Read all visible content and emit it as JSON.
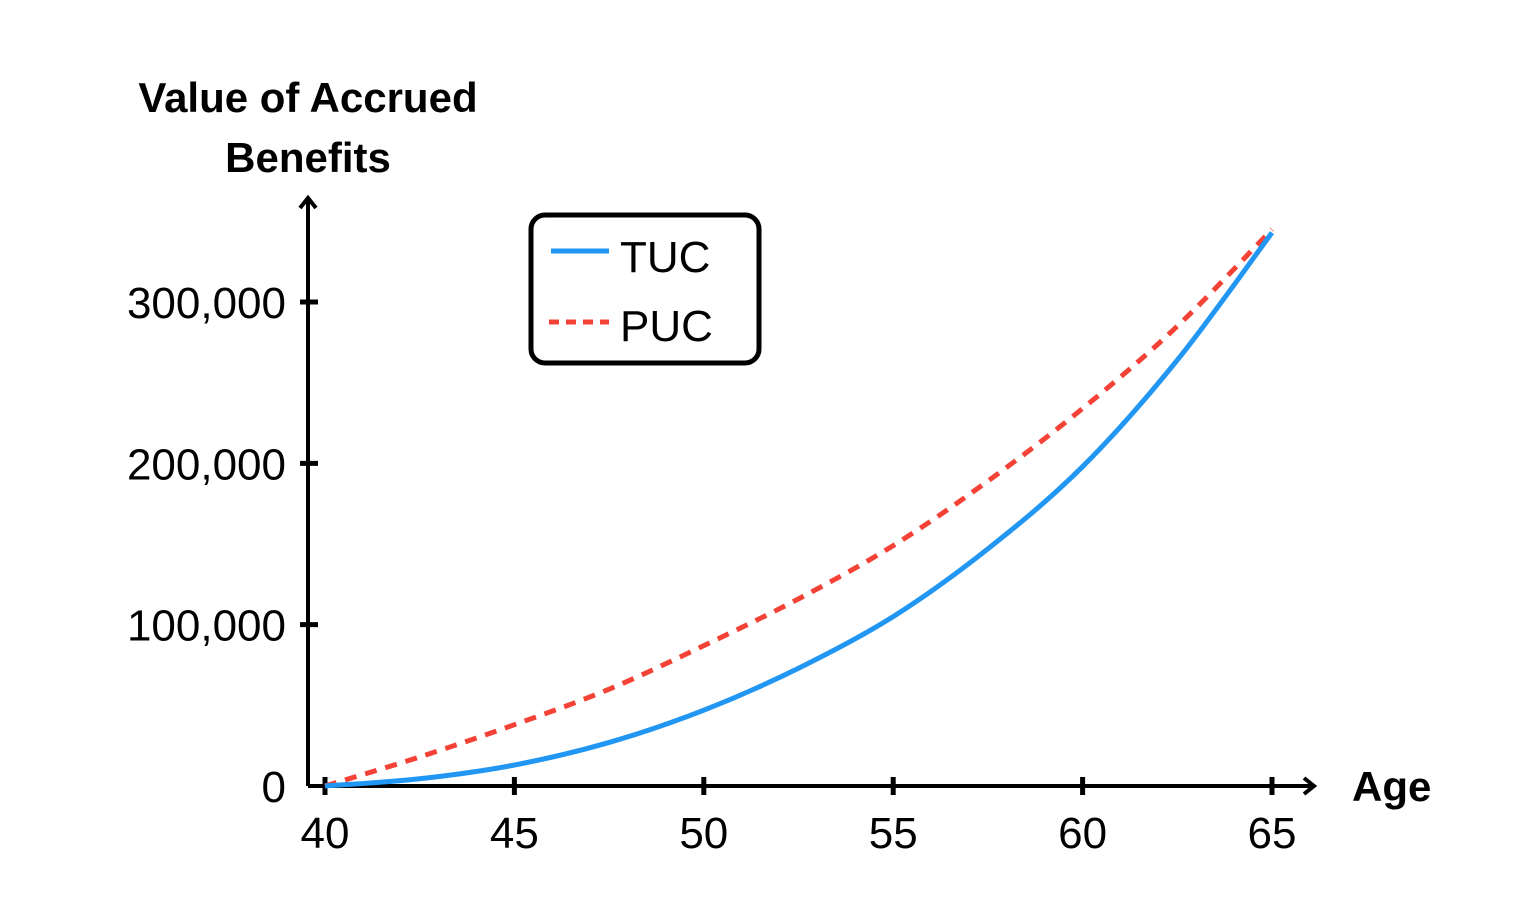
{
  "chart_data": {
    "type": "line",
    "title": "",
    "xlabel": "Age",
    "ylabel_lines": [
      "Value of Accrued",
      "Benefits"
    ],
    "xlim": [
      40,
      65
    ],
    "ylim": [
      0,
      350000
    ],
    "xticks": [
      40,
      45,
      50,
      55,
      60,
      65
    ],
    "yticks": [
      0,
      100000,
      200000,
      300000
    ],
    "xtick_labels": [
      "40",
      "45",
      "50",
      "55",
      "60",
      "65"
    ],
    "ytick_labels": [
      "0",
      "100,000",
      "200,000",
      "300,000"
    ],
    "legend_position": "top-center",
    "grid": false,
    "series": [
      {
        "name": "TUC",
        "color": "#2196F3",
        "style": "solid",
        "x": [
          40,
          42.5,
          45,
          47.5,
          50,
          52.5,
          55,
          57.5,
          60,
          62.5,
          65
        ],
        "y": [
          0,
          4500,
          13000,
          27000,
          47000,
          73000,
          105000,
          147000,
          198000,
          264000,
          343000
        ]
      },
      {
        "name": "PUC",
        "color": "#F44336",
        "style": "dashed",
        "x": [
          40,
          42.5,
          45,
          47.5,
          50,
          52.5,
          55,
          57.5,
          60,
          62.5,
          65
        ],
        "y": [
          0,
          18000,
          38000,
          60000,
          87000,
          116000,
          149000,
          189000,
          234000,
          285000,
          345000
        ]
      }
    ]
  }
}
